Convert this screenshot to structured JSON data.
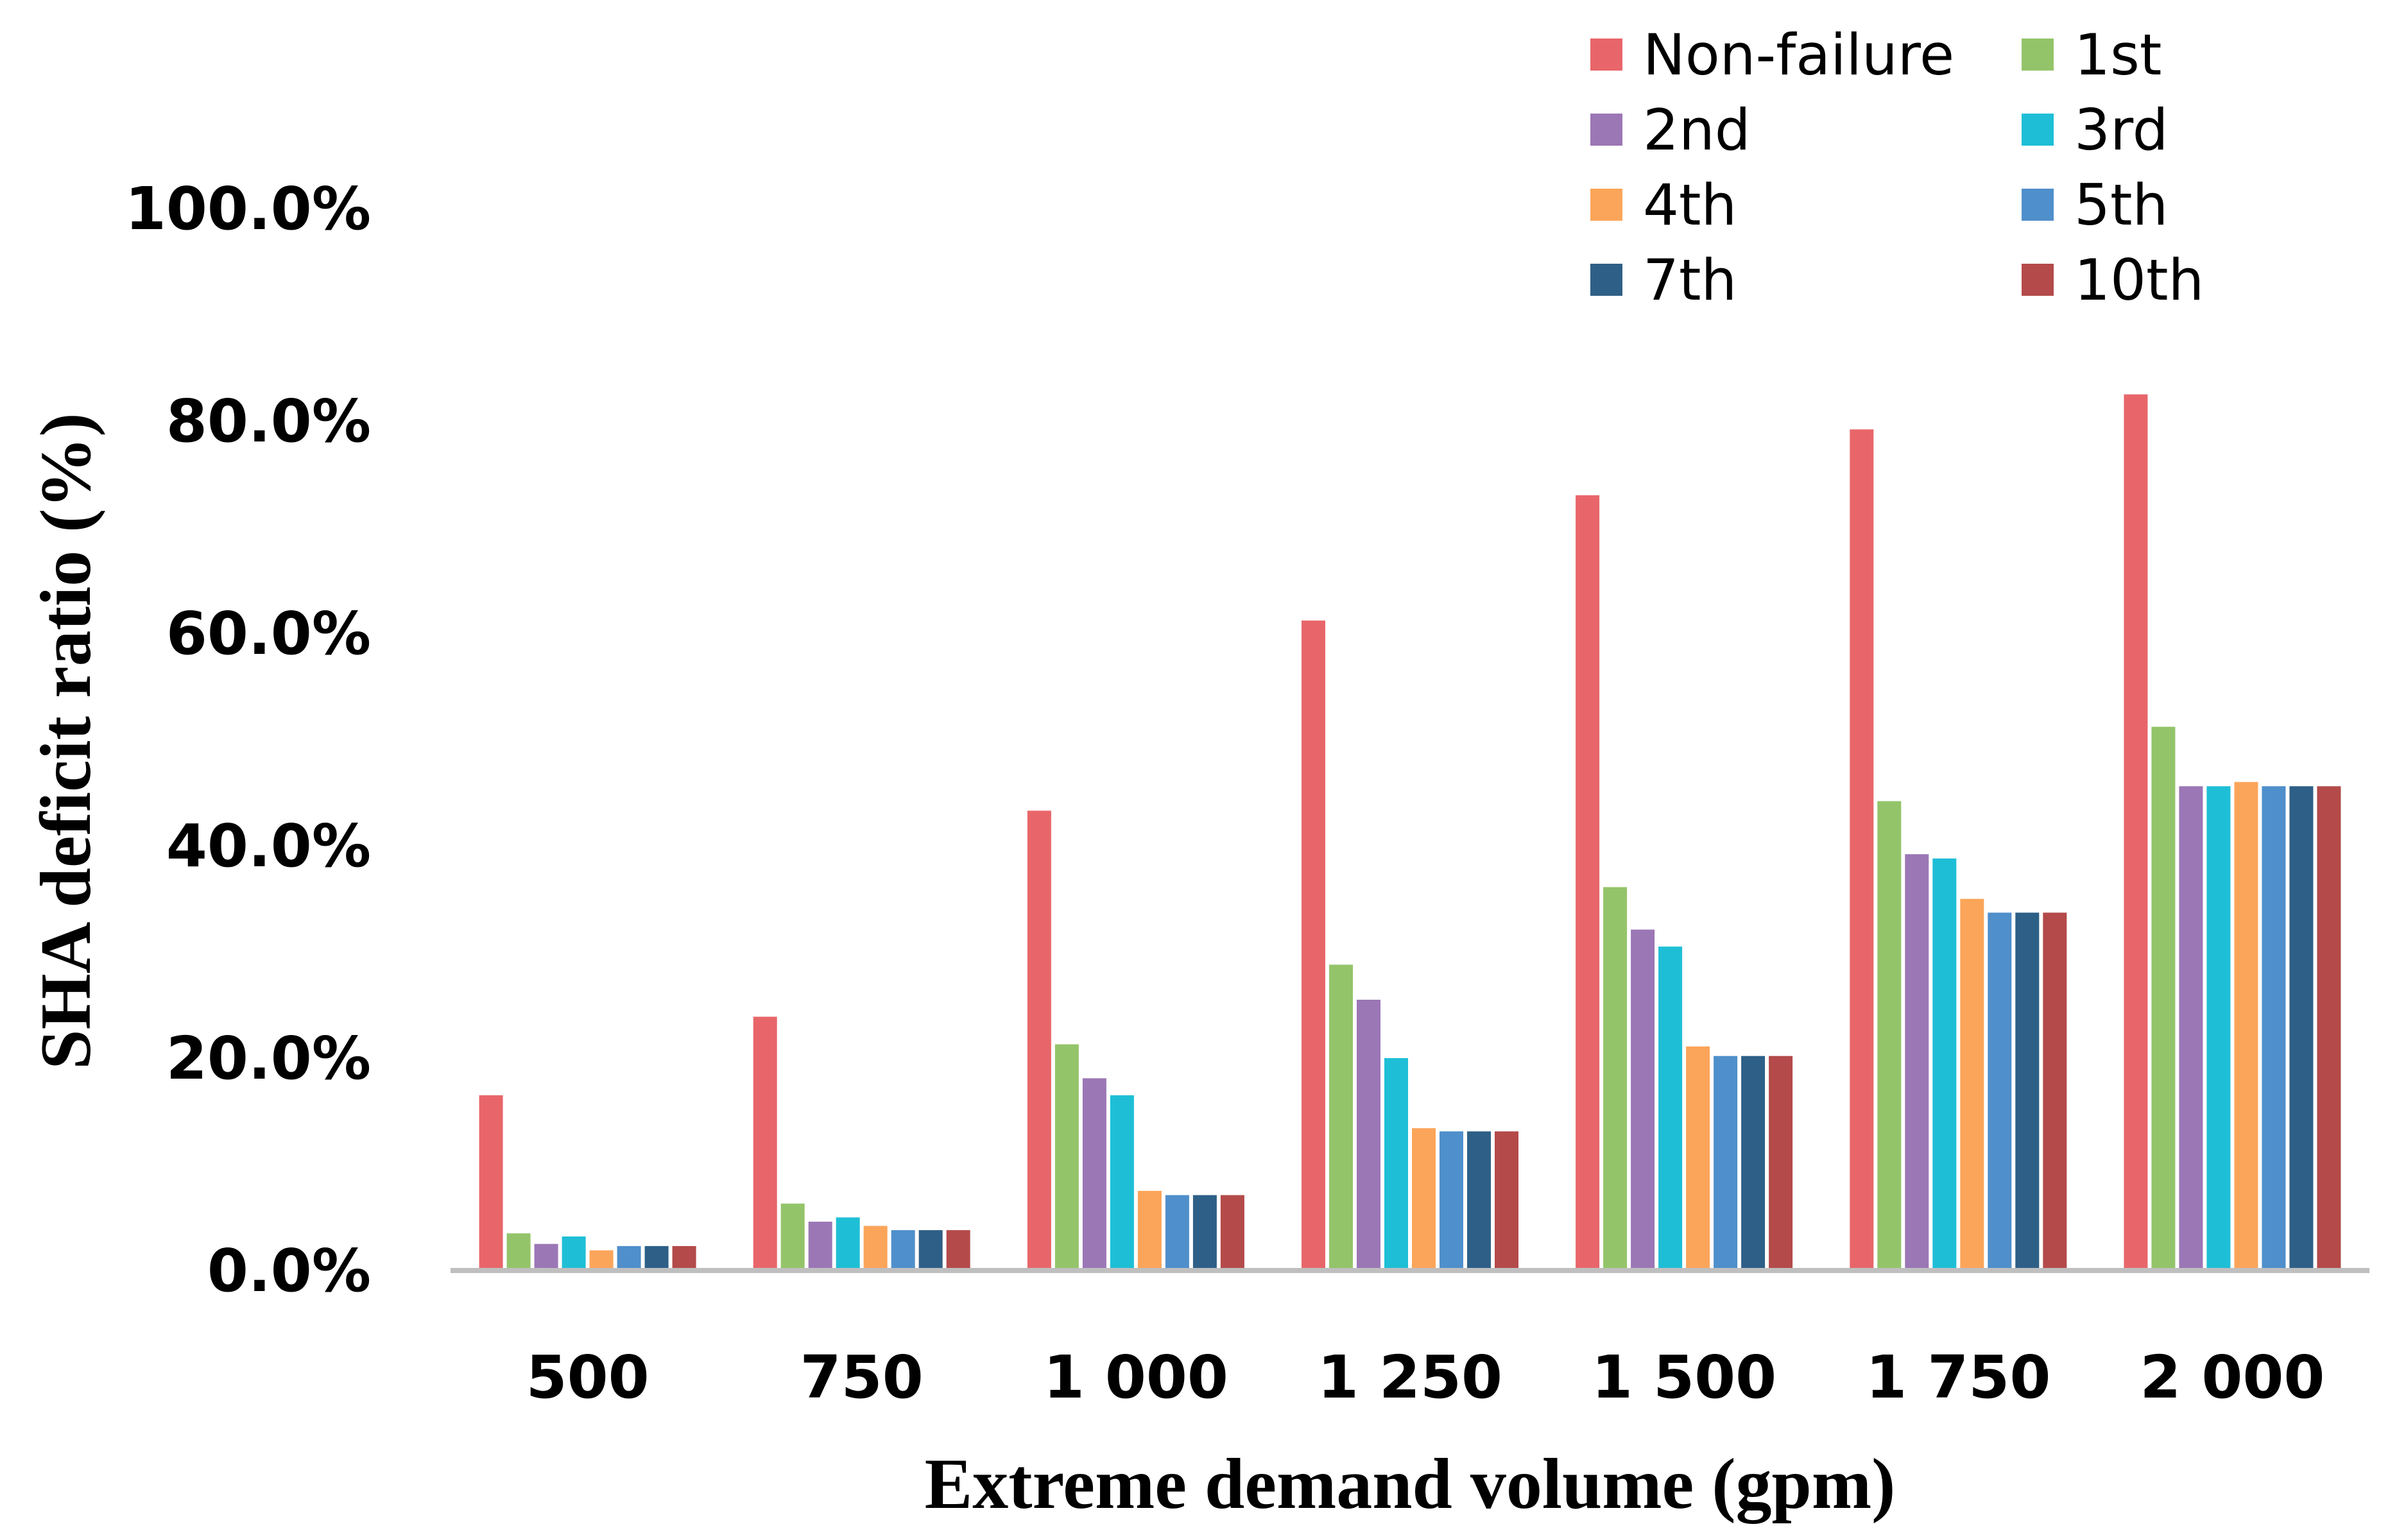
{
  "chart_data": {
    "type": "bar",
    "title": "",
    "xlabel": "Extreme demand volume (gpm)",
    "ylabel": "SHA deficit ratio (%)",
    "ylim": [
      0,
      100
    ],
    "yticks": [
      "0.0%",
      "20.0%",
      "40.0%",
      "60.0%",
      "80.0%",
      "100.0%"
    ],
    "ytick_values": [
      0,
      20,
      40,
      60,
      80,
      100
    ],
    "grid": false,
    "legend_position": "top-right",
    "categories": [
      "500",
      "750",
      "1 000",
      "1 250",
      "1 500",
      "1 750",
      "2 000"
    ],
    "series": [
      {
        "name": "Non-failure",
        "color": "#E8666A",
        "values": [
          16.5,
          23.9,
          43.3,
          61.2,
          73.0,
          79.2,
          82.5
        ]
      },
      {
        "name": "1st",
        "color": "#94C46A",
        "values": [
          3.5,
          6.3,
          21.3,
          28.8,
          36.1,
          44.2,
          51.2
        ]
      },
      {
        "name": "2nd",
        "color": "#9B77B6",
        "values": [
          2.5,
          4.6,
          18.1,
          25.5,
          32.1,
          39.2,
          45.6
        ]
      },
      {
        "name": "3rd",
        "color": "#1EBFD6",
        "values": [
          3.2,
          5.0,
          16.5,
          20.0,
          30.5,
          38.8,
          45.6
        ]
      },
      {
        "name": "4th",
        "color": "#FBA55A",
        "values": [
          1.9,
          4.2,
          7.5,
          13.4,
          21.1,
          35.0,
          46.0
        ]
      },
      {
        "name": "5th",
        "color": "#4F8FCB",
        "values": [
          2.3,
          3.8,
          7.1,
          13.1,
          20.2,
          33.7,
          45.6
        ]
      },
      {
        "name": "7th",
        "color": "#2E5F86",
        "values": [
          2.3,
          3.8,
          7.1,
          13.1,
          20.2,
          33.7,
          45.6
        ]
      },
      {
        "name": "10th",
        "color": "#B44A4A",
        "values": [
          2.3,
          3.8,
          7.1,
          13.1,
          20.2,
          33.7,
          45.6
        ]
      }
    ]
  }
}
